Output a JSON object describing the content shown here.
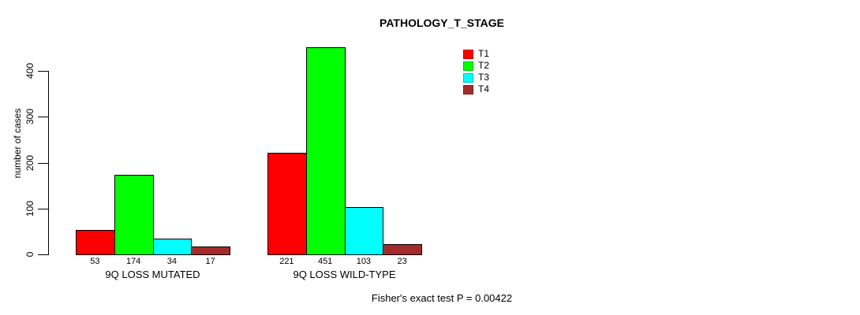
{
  "chart_data": {
    "type": "bar",
    "title": "PATHOLOGY_T_STAGE",
    "ylabel": "number of cases",
    "xlabel": "",
    "ylim": [
      0,
      460
    ],
    "yticks": [
      0,
      100,
      200,
      300,
      400
    ],
    "grid": false,
    "legend_position": "top-right",
    "categories": [
      "9Q LOSS MUTATED",
      "9Q LOSS WILD-TYPE"
    ],
    "series": [
      {
        "name": "T1",
        "color": "#FF0000",
        "values": [
          53,
          221
        ]
      },
      {
        "name": "T2",
        "color": "#00FF00",
        "values": [
          174,
          451
        ]
      },
      {
        "name": "T3",
        "color": "#00FFFF",
        "values": [
          34,
          103
        ]
      },
      {
        "name": "T4",
        "color": "#A52A2A",
        "values": [
          17,
          23
        ]
      }
    ],
    "bar_value_labels": [
      [
        "53",
        "174",
        "34",
        "17"
      ],
      [
        "221",
        "451",
        "103",
        "23"
      ]
    ],
    "annotation": "Fisher's exact test P = 0.00422"
  }
}
